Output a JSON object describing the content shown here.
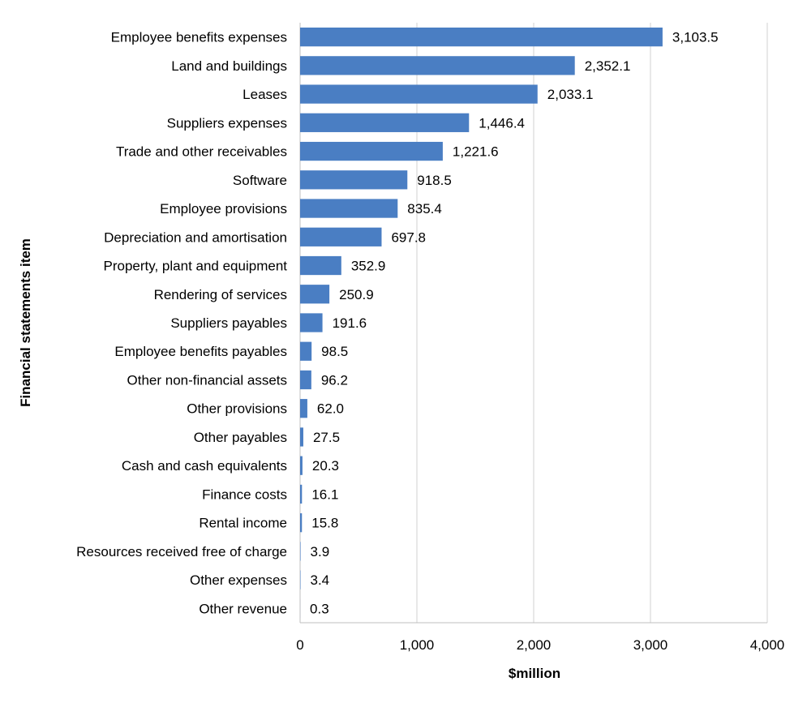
{
  "chart_data": {
    "type": "bar",
    "orientation": "horizontal",
    "xlabel": "$million",
    "ylabel": "Financial statements item",
    "xlim": [
      0,
      4000
    ],
    "xticks": [
      0,
      1000,
      2000,
      3000,
      4000
    ],
    "xtick_labels": [
      "0",
      "1,000",
      "2,000",
      "3,000",
      "4,000"
    ],
    "grid": "vertical",
    "legend": "none",
    "bar_color": "#4a7ec3",
    "categories": [
      "Employee benefits expenses",
      "Land and buildings",
      "Leases",
      "Suppliers expenses",
      "Trade and other receivables",
      "Software",
      "Employee provisions",
      "Depreciation and amortisation",
      "Property, plant and equipment",
      "Rendering of services",
      "Suppliers payables",
      "Employee benefits payables",
      "Other non-financial assets",
      "Other provisions",
      "Other payables",
      "Cash and cash equivalents",
      "Finance costs",
      "Rental income",
      "Resources received free of charge",
      "Other expenses",
      "Other revenue"
    ],
    "values": [
      3103.5,
      2352.1,
      2033.1,
      1446.4,
      1221.6,
      918.5,
      835.4,
      697.8,
      352.9,
      250.9,
      191.6,
      98.5,
      96.2,
      62.0,
      27.5,
      20.3,
      16.1,
      15.8,
      3.9,
      3.4,
      0.3
    ],
    "value_labels": [
      "3,103.5",
      "2,352.1",
      "2,033.1",
      "1,446.4",
      "1,221.6",
      "918.5",
      "835.4",
      "697.8",
      "352.9",
      "250.9",
      "191.6",
      "98.5",
      "96.2",
      "62.0",
      "27.5",
      "20.3",
      "16.1",
      "15.8",
      "3.9",
      "3.4",
      "0.3"
    ]
  }
}
